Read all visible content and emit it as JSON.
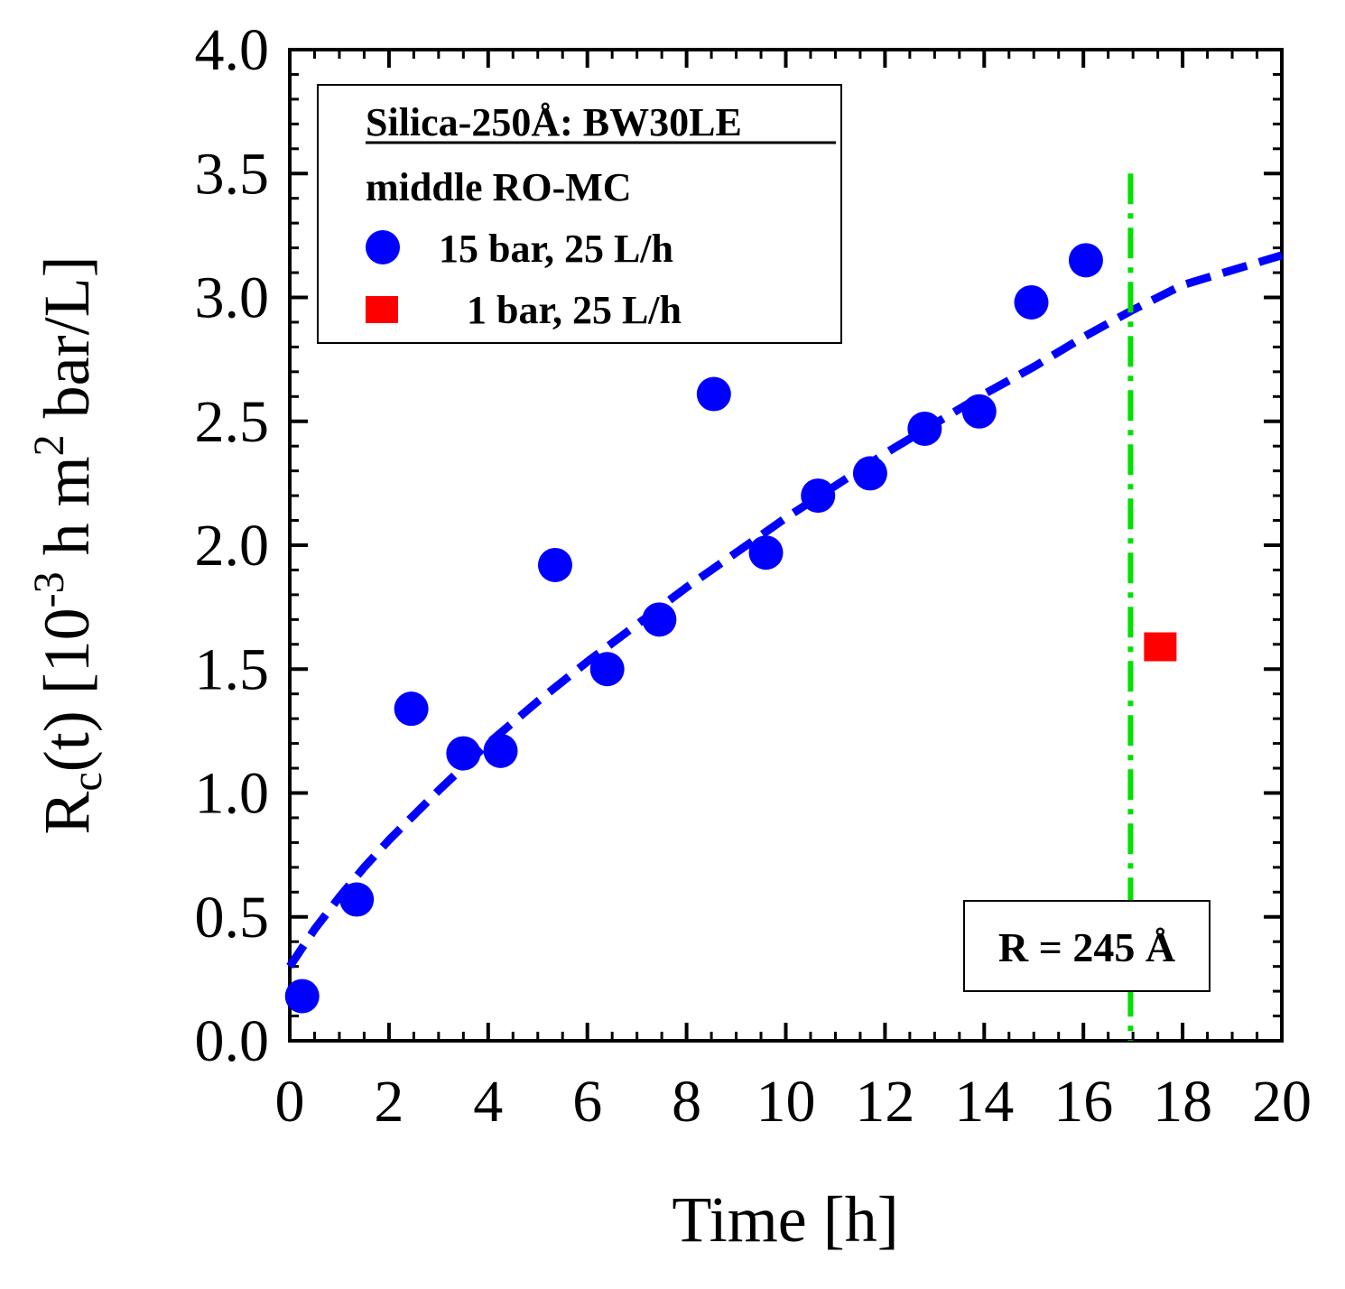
{
  "chart_data": {
    "type": "scatter",
    "xlabel": "Time [h]",
    "ylabel": {
      "prefix": "R",
      "sub": "c",
      "mid": "(t) [10",
      "sup1": "-3",
      "mid2": " h m",
      "sup2": "2",
      "suffix": " bar/L]"
    },
    "xlim": [
      0,
      20
    ],
    "ylim": [
      0,
      4.0
    ],
    "x_ticks": [
      0,
      2,
      4,
      6,
      8,
      10,
      12,
      14,
      16,
      18,
      20
    ],
    "x_tick_labels": [
      "0",
      "2",
      "4",
      "6",
      "8",
      "10",
      "12",
      "14",
      "16",
      "18",
      "20"
    ],
    "y_ticks": [
      0,
      0.5,
      1.0,
      1.5,
      2.0,
      2.5,
      3.0,
      3.5,
      4.0
    ],
    "y_tick_labels": [
      "0.0",
      "0.5",
      "1.0",
      "1.5",
      "2.0",
      "2.5",
      "3.0",
      "3.5",
      "4.0"
    ],
    "grid": false,
    "legend": {
      "placement": "top-left",
      "title": "Silica-250Å: BW30LE",
      "subtitle": "middle RO-MC",
      "entries": [
        "15 bar, 25 L/h",
        "1 bar, 25 L/h"
      ]
    },
    "series": [
      {
        "name": "15 bar, 25 L/h",
        "marker": "circle",
        "color": "#0000ff",
        "x": [
          0.25,
          1.35,
          2.45,
          3.5,
          4.25,
          5.35,
          6.4,
          7.45,
          8.55,
          9.6,
          10.65,
          11.7,
          12.8,
          13.9,
          14.95,
          16.05
        ],
        "y": [
          0.18,
          0.57,
          1.34,
          1.16,
          1.17,
          1.92,
          1.5,
          1.7,
          2.61,
          1.97,
          2.2,
          2.29,
          2.47,
          2.54,
          2.98,
          3.15
        ]
      },
      {
        "name": "1 bar, 25 L/h",
        "marker": "square",
        "color": "#ff0000",
        "x": [
          17.55
        ],
        "y": [
          1.59
        ]
      }
    ],
    "fit_curve": {
      "style": "dashed",
      "color": "#0000ff",
      "x": [
        0,
        0.5,
        1,
        1.5,
        2,
        3,
        4,
        5,
        6,
        7,
        8,
        9,
        10,
        11,
        12,
        13,
        14,
        15,
        16,
        17,
        18,
        19,
        20
      ],
      "y": [
        0.3,
        0.45,
        0.58,
        0.7,
        0.81,
        1.01,
        1.2,
        1.37,
        1.53,
        1.68,
        1.83,
        1.97,
        2.11,
        2.24,
        2.37,
        2.49,
        2.61,
        2.72,
        2.84,
        2.95,
        3.05,
        3.11,
        3.17
      ]
    },
    "vline": {
      "x": 16.95,
      "y_top": 3.5,
      "style": "dash-dot",
      "color": "#00e000"
    },
    "annotation": {
      "text": "R = 245 Å"
    }
  }
}
